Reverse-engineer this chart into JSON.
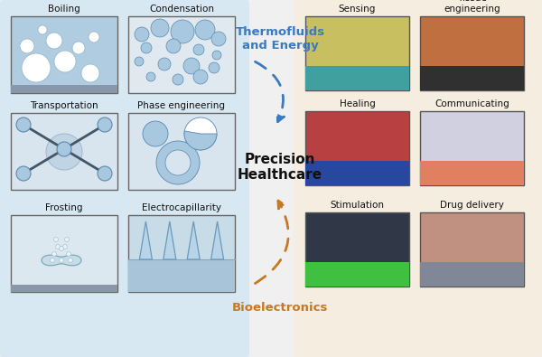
{
  "bg_left": "#d8e8f2",
  "bg_right": "#f5ede0",
  "title_thermofluid": "Thermofluids\nand Energy",
  "title_bioelectronics": "Bioelectronics",
  "title_precision": "Precision\nHealthcare",
  "color_thermofluid": "#3a7abf",
  "color_bioelectronics": "#c87820",
  "color_precision": "#111111",
  "bubble_fill": "#a8c8e0",
  "bubble_edge": "#5a8ab0",
  "box_bg_blue": "#ccdde8",
  "box_bg_gray": "#dde8ee",
  "boiling_bg": "#b0cce0",
  "condensation_bg": "#e0e8f0"
}
